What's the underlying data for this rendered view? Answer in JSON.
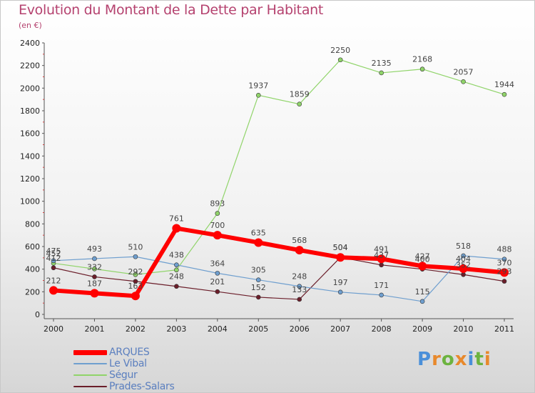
{
  "title": "Evolution du Montant de la Dette par Habitant",
  "subtitle": "(en €)",
  "logo": {
    "text": "Proxiti",
    "colors": [
      "#4a8fd9",
      "#e8892c",
      "#6cb33f",
      "#e8892c",
      "#4a8fd9",
      "#6cb33f",
      "#e8892c"
    ]
  },
  "chart_data": {
    "type": "line",
    "x": [
      "2000",
      "2001",
      "2002",
      "2003",
      "2004",
      "2005",
      "2006",
      "2007",
      "2008",
      "2009",
      "2010",
      "2011"
    ],
    "ylim": [
      0,
      2400
    ],
    "yticks": [
      0,
      200,
      400,
      600,
      800,
      1000,
      1200,
      1400,
      1600,
      1800,
      2000,
      2200,
      2400
    ],
    "grid": false,
    "legend_position": "bottom-left",
    "series": [
      {
        "name": "Prades-Salars",
        "color": "#6b1e2a",
        "width": 1.2,
        "marker": 3,
        "values": [
          412,
          332,
          292,
          248,
          201,
          152,
          133,
          504,
          437,
          400,
          352,
          293
        ],
        "labels": [
          "412",
          "332",
          "292",
          "248",
          "201",
          "152",
          "133",
          "504",
          "437",
          "400",
          "352",
          "293"
        ]
      },
      {
        "name": "Ségur",
        "color": "#90d46a",
        "width": 1.2,
        "marker": 3,
        "values": [
          452,
          402,
          352,
          393,
          893,
          1937,
          1859,
          2250,
          2135,
          2168,
          2057,
          1944
        ],
        "labels": [
          "452",
          "",
          "",
          "",
          "893",
          "1937",
          "1859",
          "2250",
          "2135",
          "2168",
          "2057",
          "1944"
        ]
      },
      {
        "name": "Le Vibal",
        "color": "#6f9fcf",
        "width": 1.2,
        "marker": 3,
        "values": [
          475,
          493,
          510,
          438,
          364,
          305,
          248,
          197,
          171,
          115,
          518,
          488
        ],
        "labels": [
          "475",
          "493",
          "510",
          "438",
          "364",
          "305",
          "248",
          "197",
          "171",
          "115",
          "518",
          "488"
        ]
      },
      {
        "name": "ARQUES",
        "color": "#ff0000",
        "width": 6,
        "marker": 6,
        "values": [
          212,
          187,
          163,
          761,
          700,
          635,
          568,
          504,
          491,
          427,
          404,
          370
        ],
        "labels": [
          "212",
          "187",
          "163",
          "761",
          "700",
          "635",
          "568",
          "504",
          "491",
          "427",
          "404",
          "370"
        ]
      }
    ]
  }
}
